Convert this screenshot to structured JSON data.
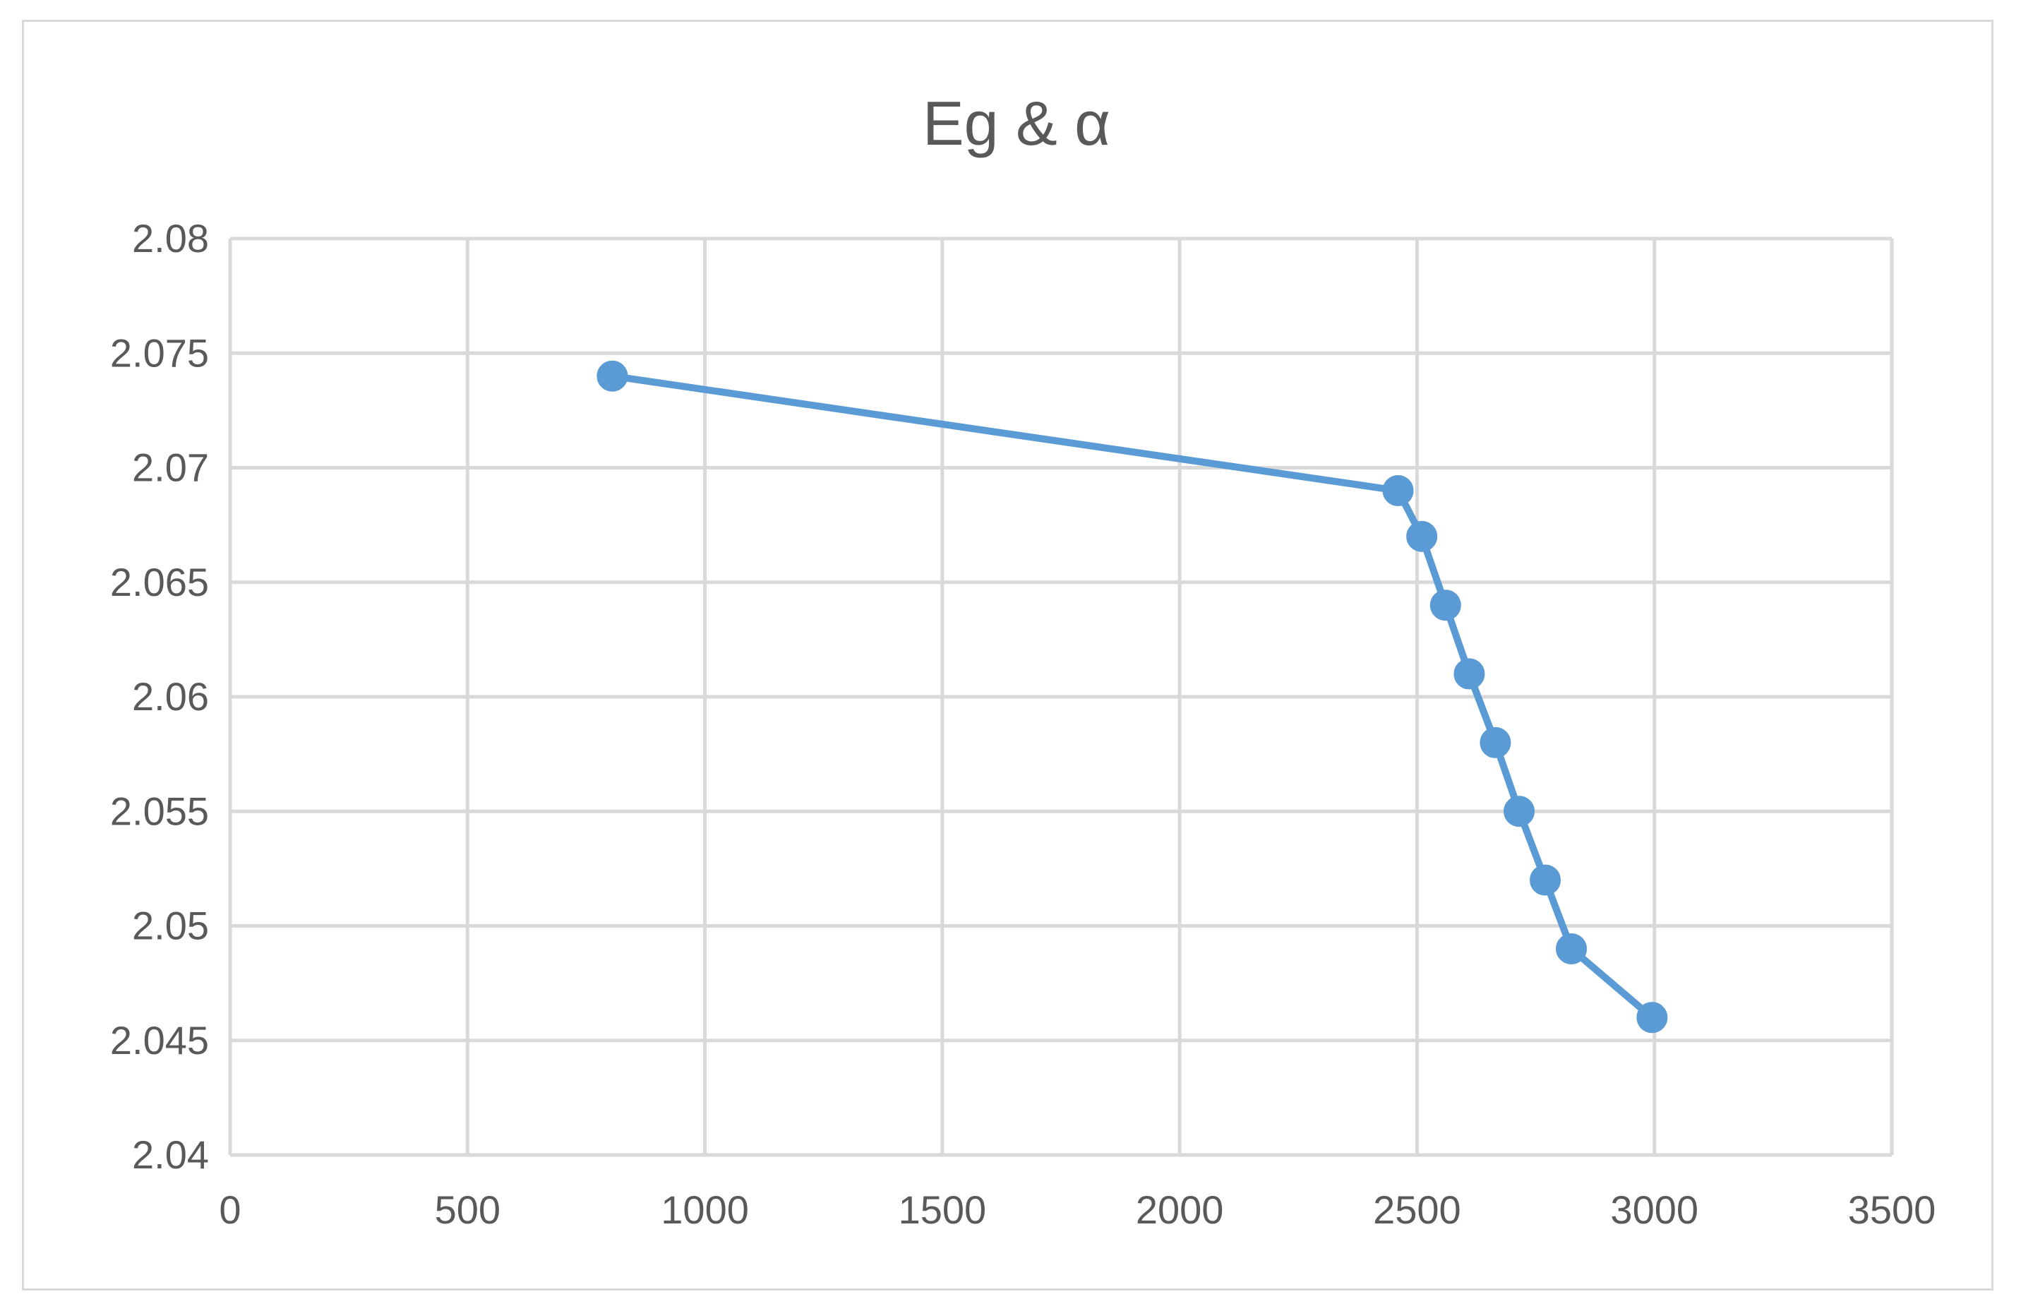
{
  "chart_data": {
    "type": "line",
    "title": "Eg & α",
    "xlabel": "",
    "ylabel": "",
    "xlim": [
      0,
      3500
    ],
    "ylim": [
      2.04,
      2.08
    ],
    "x_ticks": [
      "0",
      "500",
      "1000",
      "1500",
      "2000",
      "2500",
      "3000",
      "3500"
    ],
    "y_ticks": [
      "2.04",
      "2.045",
      "2.05",
      "2.055",
      "2.06",
      "2.065",
      "2.07",
      "2.075",
      "2.08"
    ],
    "grid": true,
    "legend": "none",
    "series": [
      {
        "color": "#5b9bd5",
        "x": [
          805,
          2460,
          2510,
          2560,
          2610,
          2665,
          2715,
          2770,
          2825,
          2995
        ],
        "y": [
          2.074,
          2.069,
          2.067,
          2.064,
          2.061,
          2.058,
          2.055,
          2.052,
          2.049,
          2.046
        ]
      }
    ]
  }
}
